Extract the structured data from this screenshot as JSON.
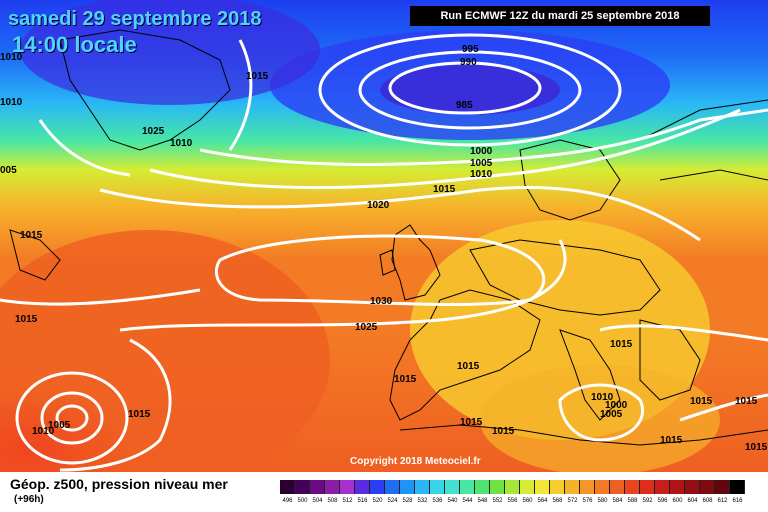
{
  "header": {
    "date": "samedi 29 septembre 2018",
    "time": "14:00 locale",
    "run": "Run ECMWF 12Z du mardi 25 septembre 2018"
  },
  "footer": {
    "title": "Géop. z500, pression niveau mer",
    "subtitle": "(+96h)",
    "copyright": "Copyright 2018 Meteociel.fr"
  },
  "legend": {
    "labels": [
      "496",
      "500",
      "504",
      "508",
      "512",
      "516",
      "520",
      "524",
      "528",
      "532",
      "536",
      "540",
      "544",
      "548",
      "552",
      "556",
      "560",
      "564",
      "568",
      "572",
      "576",
      "580",
      "584",
      "588",
      "592",
      "596",
      "600",
      "604",
      "608",
      "612",
      "616"
    ],
    "colors": [
      "#2b0031",
      "#45005a",
      "#6a0a82",
      "#8a1ca8",
      "#a72fd0",
      "#5a2be0",
      "#2b3ef5",
      "#1f6cf6",
      "#1f94f7",
      "#2ab8f5",
      "#37d4ea",
      "#42e2cf",
      "#48e7a4",
      "#4de46f",
      "#6fe243",
      "#a5e637",
      "#d6ec33",
      "#f3e634",
      "#f7cd2e",
      "#f7b22b",
      "#f79628",
      "#f37b25",
      "#ef5f22",
      "#e8451f",
      "#df2d1c",
      "#c91d19",
      "#b01416",
      "#960e13",
      "#7d0a10",
      "#63060c",
      "#000000"
    ]
  },
  "map_labels": {
    "pressure": [
      "1010",
      "1010",
      "1015",
      "1025",
      "1010",
      "005",
      "1015",
      "1015",
      "995",
      "990",
      "985",
      "1000",
      "1005",
      "1010",
      "1015",
      "1020",
      "1030",
      "1025",
      "1015",
      "1015",
      "1015",
      "1015",
      "1015",
      "1010",
      "1005",
      "1000",
      "1015",
      "1015",
      "1015",
      "1005",
      "1010",
      "1015",
      "1015"
    ]
  }
}
